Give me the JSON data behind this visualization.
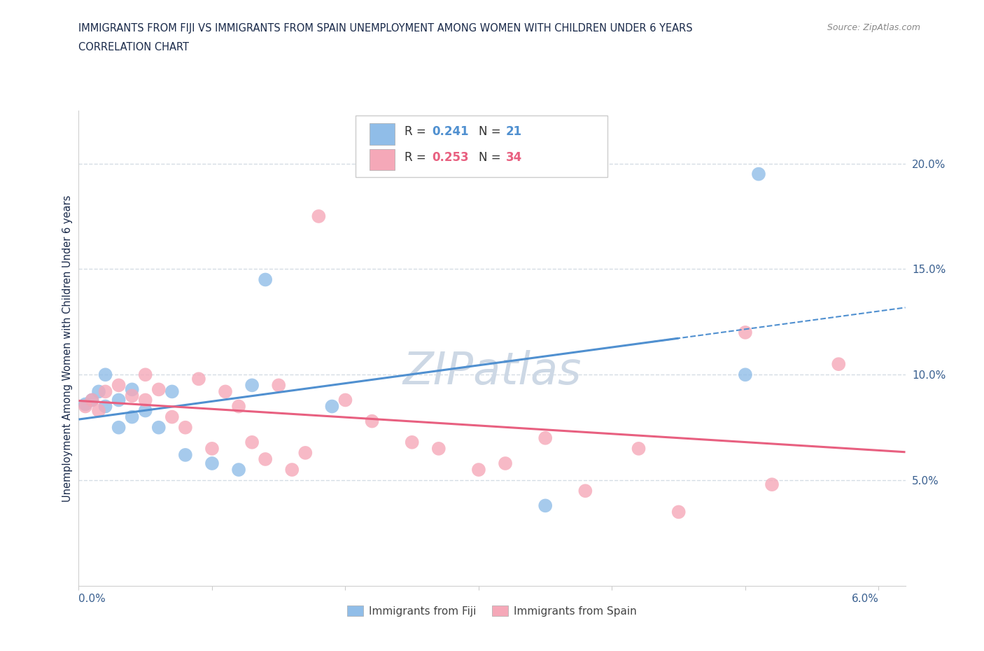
{
  "title_line1": "IMMIGRANTS FROM FIJI VS IMMIGRANTS FROM SPAIN UNEMPLOYMENT AMONG WOMEN WITH CHILDREN UNDER 6 YEARS",
  "title_line2": "CORRELATION CHART",
  "source_text": "Source: ZipAtlas.com",
  "ylabel": "Unemployment Among Women with Children Under 6 years",
  "right_ytick_vals": [
    0.05,
    0.1,
    0.15,
    0.2
  ],
  "right_ytick_labels": [
    "5.0%",
    "10.0%",
    "15.0%",
    "20.0%"
  ],
  "xmin": 0.0,
  "xmax": 0.062,
  "ymin": 0.0,
  "ymax": 0.225,
  "fiji_R": 0.241,
  "fiji_N": 21,
  "spain_R": 0.253,
  "spain_N": 34,
  "fiji_color": "#90bde8",
  "spain_color": "#f5a8b8",
  "fiji_line_color": "#5090d0",
  "spain_line_color": "#e86080",
  "fiji_scatter_x": [
    0.0005,
    0.001,
    0.0015,
    0.002,
    0.002,
    0.003,
    0.003,
    0.004,
    0.004,
    0.005,
    0.006,
    0.007,
    0.008,
    0.01,
    0.012,
    0.013,
    0.014,
    0.019,
    0.035,
    0.05,
    0.051
  ],
  "fiji_scatter_y": [
    0.086,
    0.088,
    0.092,
    0.085,
    0.1,
    0.088,
    0.075,
    0.093,
    0.08,
    0.083,
    0.075,
    0.092,
    0.062,
    0.058,
    0.055,
    0.095,
    0.145,
    0.085,
    0.038,
    0.1,
    0.195
  ],
  "spain_scatter_x": [
    0.0005,
    0.001,
    0.0015,
    0.002,
    0.003,
    0.004,
    0.005,
    0.005,
    0.006,
    0.007,
    0.008,
    0.009,
    0.01,
    0.011,
    0.012,
    0.013,
    0.014,
    0.015,
    0.016,
    0.017,
    0.018,
    0.02,
    0.022,
    0.025,
    0.027,
    0.03,
    0.032,
    0.035,
    0.038,
    0.042,
    0.045,
    0.05,
    0.052,
    0.057
  ],
  "spain_scatter_y": [
    0.085,
    0.088,
    0.083,
    0.092,
    0.095,
    0.09,
    0.088,
    0.1,
    0.093,
    0.08,
    0.075,
    0.098,
    0.065,
    0.092,
    0.085,
    0.068,
    0.06,
    0.095,
    0.055,
    0.063,
    0.175,
    0.088,
    0.078,
    0.068,
    0.065,
    0.055,
    0.058,
    0.07,
    0.045,
    0.065,
    0.035,
    0.12,
    0.048,
    0.105
  ],
  "watermark": "ZIPatlas",
  "watermark_color": "#cdd8e5",
  "grid_color": "#d5dde5",
  "title_color": "#1a2a4a",
  "axis_label_color": "#3a6090",
  "bg_color": "#ffffff"
}
